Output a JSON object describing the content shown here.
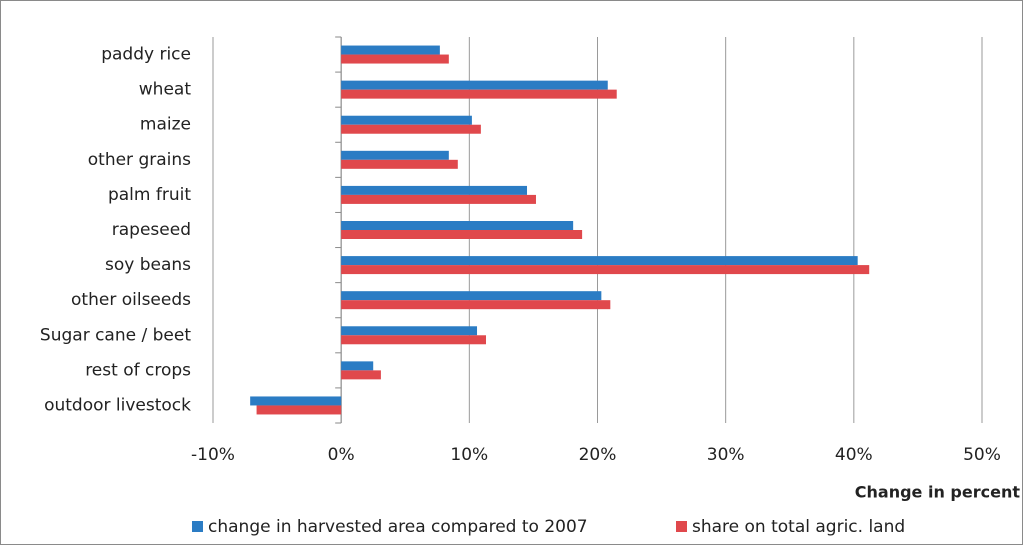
{
  "chart_data": {
    "type": "hbar",
    "categories": [
      "paddy rice",
      "wheat",
      "maize",
      "other grains",
      "palm fruit",
      "rapeseed",
      "soy beans",
      "other oilseeds",
      "Sugar cane / beet",
      "rest of crops",
      "outdoor livestock"
    ],
    "series": [
      {
        "name": "change in harvested area compared to 2007",
        "color": "#2b7cc4",
        "values": [
          7.7,
          20.8,
          10.2,
          8.4,
          14.5,
          18.1,
          40.3,
          20.3,
          10.6,
          2.5,
          -7.1
        ]
      },
      {
        "name": "share on total agric. land",
        "color": "#e0484c",
        "values": [
          8.4,
          21.5,
          10.9,
          9.1,
          15.2,
          18.8,
          41.2,
          21.0,
          11.3,
          3.1,
          -6.6
        ]
      }
    ],
    "xlim": [
      -10,
      50
    ],
    "xticks": [
      {
        "value": -10,
        "label": "-10%"
      },
      {
        "value": 0,
        "label": "0%"
      },
      {
        "value": 10,
        "label": "10%"
      },
      {
        "value": 20,
        "label": "20%"
      },
      {
        "value": 30,
        "label": "30%"
      },
      {
        "value": 40,
        "label": "40%"
      },
      {
        "value": 50,
        "label": "50%"
      }
    ],
    "xlabel": "Change in percent",
    "grid": true,
    "legend": "bottom"
  }
}
